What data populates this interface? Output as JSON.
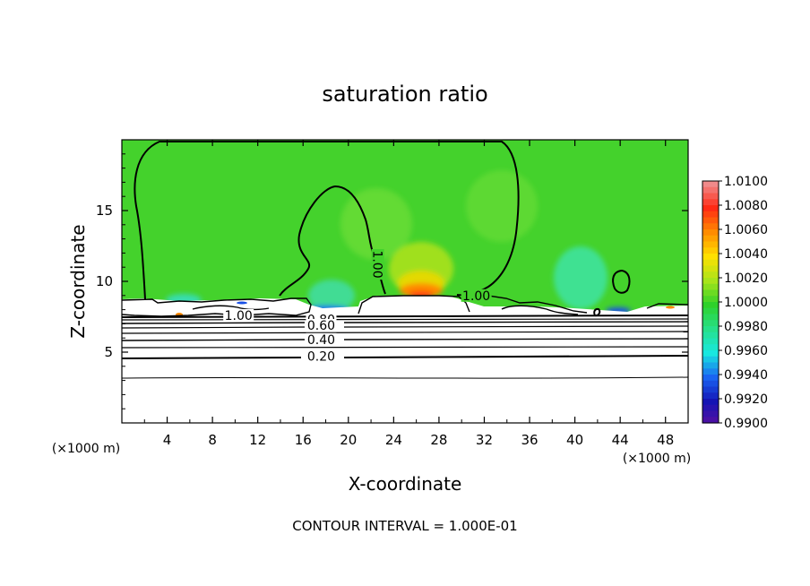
{
  "chart_data": {
    "type": "contour",
    "title": "saturation ratio",
    "xlabel": "X-coordinate",
    "ylabel": "Z-coordinate",
    "x_unit_label": "(×1000 m)",
    "z_unit_label": "(×1000 m)",
    "xlim": [
      0,
      50
    ],
    "ylim": [
      0,
      20
    ],
    "x_ticks": [
      4,
      8,
      12,
      16,
      20,
      24,
      28,
      32,
      36,
      40,
      44,
      48
    ],
    "y_ticks": [
      5,
      10,
      15
    ],
    "footer": "CONTOUR INTERVAL = 1.000E-01",
    "colorbar": {
      "labels": [
        "1.0100",
        "1.0080",
        "1.0060",
        "1.0040",
        "1.0020",
        "1.0000",
        "0.9980",
        "0.9960",
        "0.9940",
        "0.9920",
        "0.9900"
      ],
      "colors": [
        "#f08a8a",
        "#ff2a14",
        "#ff8c00",
        "#ffe000",
        "#a8e41a",
        "#2ed12a",
        "#26e08a",
        "#18e8e0",
        "#1a64f2",
        "#1414b4",
        "#5a0fa0"
      ]
    },
    "background_color": "#44d22c",
    "contour_labels": [
      {
        "text": "1.00",
        "x": 22.6,
        "z": 11.2,
        "rotate": 90
      },
      {
        "text": "1.00",
        "x": 31.3,
        "z": 9.0,
        "rotate": 0
      },
      {
        "text": "1.00",
        "x": 10.3,
        "z": 7.6,
        "rotate": 0
      },
      {
        "text": "0.80",
        "x": 17.6,
        "z": 7.3,
        "rotate": 0
      },
      {
        "text": "0.60",
        "x": 17.6,
        "z": 6.9,
        "rotate": 0
      },
      {
        "text": "0.40",
        "x": 17.6,
        "z": 5.9,
        "rotate": 0
      },
      {
        "text": "0.20",
        "x": 17.6,
        "z": 4.7,
        "rotate": 0
      }
    ]
  }
}
